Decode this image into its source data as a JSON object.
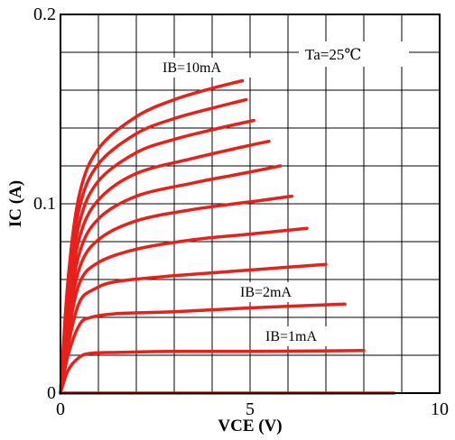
{
  "chart_data": {
    "type": "line",
    "title": "",
    "xlabel": "VCE (V)",
    "ylabel": "IC (A)",
    "xlim": [
      0,
      10
    ],
    "ylim": [
      0,
      0.2
    ],
    "x_ticks": [
      "0",
      "5",
      "10"
    ],
    "y_ticks": [
      "0",
      "0.1",
      "0.2"
    ],
    "grid": true,
    "line_color": "#e8201a",
    "annotations": {
      "temperature": "Ta=25℃",
      "ib_top": "IB=10mA",
      "ib_mid": "IB=2mA",
      "ib_low": "IB=1mA"
    },
    "series": [
      {
        "x": [
          0,
          8.8
        ],
        "y": [
          0,
          0
        ]
      },
      {
        "x": [
          0,
          0.2,
          0.5,
          0.8,
          1.5,
          3,
          5,
          8
        ],
        "y": [
          0,
          0.012,
          0.019,
          0.021,
          0.0215,
          0.022,
          0.022,
          0.0225
        ]
      },
      {
        "x": [
          0,
          0.2,
          0.5,
          0.8,
          1.5,
          3,
          5,
          7.5
        ],
        "y": [
          0,
          0.02,
          0.036,
          0.04,
          0.042,
          0.043,
          0.045,
          0.047
        ]
      },
      {
        "x": [
          0,
          0.2,
          0.5,
          0.9,
          1.5,
          3,
          5,
          7
        ],
        "y": [
          0,
          0.025,
          0.048,
          0.055,
          0.059,
          0.062,
          0.065,
          0.068
        ]
      },
      {
        "x": [
          0,
          0.2,
          0.5,
          1,
          2,
          3.5,
          5,
          6.5
        ],
        "y": [
          0,
          0.03,
          0.058,
          0.069,
          0.076,
          0.081,
          0.084,
          0.087
        ]
      },
      {
        "x": [
          0,
          0.2,
          0.5,
          1,
          2,
          3.5,
          5,
          6.1
        ],
        "y": [
          0,
          0.035,
          0.066,
          0.081,
          0.091,
          0.097,
          0.101,
          0.104
        ]
      },
      {
        "x": [
          0,
          0.2,
          0.5,
          1,
          2,
          3.5,
          4.8,
          5.8
        ],
        "y": [
          0,
          0.04,
          0.074,
          0.092,
          0.104,
          0.111,
          0.116,
          0.12
        ]
      },
      {
        "x": [
          0,
          0.2,
          0.5,
          1,
          2,
          3.5,
          4.8,
          5.5
        ],
        "y": [
          0,
          0.045,
          0.082,
          0.102,
          0.116,
          0.124,
          0.13,
          0.133
        ]
      },
      {
        "x": [
          0,
          0.2,
          0.5,
          1,
          2,
          3,
          4.2,
          5.1
        ],
        "y": [
          0,
          0.05,
          0.09,
          0.112,
          0.127,
          0.134,
          0.14,
          0.144
        ]
      },
      {
        "x": [
          0,
          0.2,
          0.5,
          1,
          2,
          3,
          4.1,
          4.9
        ],
        "y": [
          0,
          0.055,
          0.098,
          0.121,
          0.137,
          0.145,
          0.151,
          0.155
        ]
      },
      {
        "x": [
          0,
          0.2,
          0.5,
          1,
          2,
          3,
          4,
          4.8
        ],
        "y": [
          0,
          0.06,
          0.105,
          0.129,
          0.146,
          0.155,
          0.161,
          0.165
        ]
      }
    ]
  }
}
